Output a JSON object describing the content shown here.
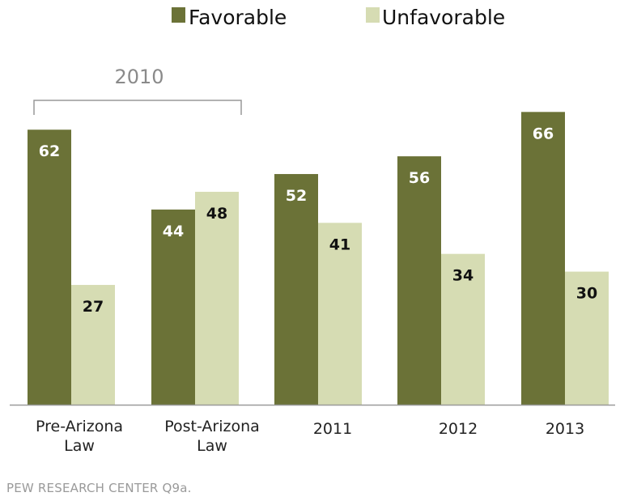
{
  "chart_data": {
    "type": "bar",
    "legend_position": "top",
    "group_label": "2010",
    "categories": [
      [
        "Pre-Arizona",
        "Law"
      ],
      [
        "Post-Arizona",
        "Law"
      ],
      [
        "2011"
      ],
      [
        "2012"
      ],
      [
        "2013"
      ]
    ],
    "series": [
      {
        "name": "Favorable",
        "values": [
          62,
          44,
          52,
          56,
          66
        ],
        "color": "#6b7237",
        "label_color": "#ffffff"
      },
      {
        "name": "Unfavorable",
        "values": [
          27,
          48,
          41,
          34,
          30
        ],
        "color": "#d6dcb3",
        "label_color": "#111111"
      }
    ],
    "ylim": [
      0,
      70
    ],
    "grid": false
  },
  "footer": {
    "source": "PEW RESEARCH CENTER Q9a."
  }
}
